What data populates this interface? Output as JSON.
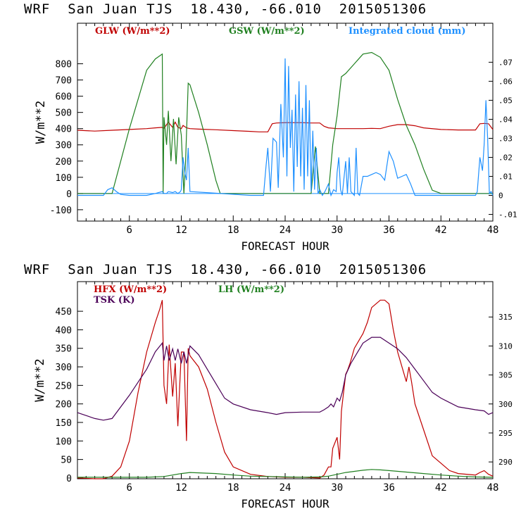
{
  "chart_data": [
    {
      "type": "line",
      "title": "WRF  San Juan TJS  18.430, -66.010  2015051306",
      "xlabel": "FORECAST HOUR",
      "ylabel": "W/m**2",
      "xlim": [
        0,
        48
      ],
      "ylim": [
        -170,
        1050
      ],
      "xticks": [
        6,
        12,
        18,
        24,
        30,
        36,
        42,
        48
      ],
      "yticks": [
        -100,
        0,
        100,
        200,
        300,
        400,
        500,
        600,
        700,
        800
      ],
      "y2lim": [
        -0.0135,
        0.0905
      ],
      "y2ticks": [
        -0.01,
        0,
        0.01,
        0.02,
        0.03,
        0.04,
        0.05,
        0.06,
        0.07
      ],
      "y2ticklabels": [
        "-.01",
        "0",
        ".01",
        ".02",
        ".03",
        ".04",
        ".05",
        ".06",
        ".07"
      ],
      "series": [
        {
          "name": "GLW (W/m**2)",
          "color": "#c00000",
          "axis": "left",
          "x": [
            0,
            2,
            4,
            6,
            8,
            9,
            9.8,
            10,
            10.5,
            11,
            11.3,
            11.6,
            12,
            12.2,
            12.6,
            13,
            14,
            16,
            18,
            20,
            21,
            22,
            22.5,
            23,
            24,
            25,
            26,
            27,
            28,
            28.5,
            29,
            30,
            31,
            32,
            33,
            34,
            35,
            36,
            37,
            38,
            39,
            40,
            42,
            44,
            46,
            46.5,
            47,
            47.5,
            48
          ],
          "y": [
            390,
            385,
            390,
            395,
            400,
            405,
            408,
            402,
            440,
            408,
            440,
            408,
            400,
            420,
            405,
            400,
            397,
            393,
            388,
            383,
            380,
            380,
            430,
            435,
            437,
            437,
            437,
            435,
            435,
            415,
            405,
            400,
            400,
            400,
            400,
            402,
            400,
            415,
            425,
            425,
            418,
            405,
            395,
            392,
            392,
            430,
            432,
            430,
            395
          ]
        },
        {
          "name": "GSW (W/m**2)",
          "color": "#208020",
          "axis": "left",
          "x": [
            0,
            2,
            4,
            6,
            8,
            9,
            9.8,
            9.9,
            10,
            10.3,
            10.5,
            10.8,
            11.1,
            11.4,
            11.7,
            12,
            12.3,
            12.5,
            12.8,
            13,
            14,
            15,
            16,
            16.5,
            17,
            20,
            26,
            27,
            27.5,
            28,
            29,
            29.5,
            30,
            30.5,
            31,
            32,
            33,
            34,
            35,
            36,
            37,
            38,
            39,
            40,
            41,
            42,
            48
          ],
          "y": [
            0,
            0,
            0,
            400,
            760,
            830,
            860,
            0,
            470,
            300,
            510,
            200,
            460,
            180,
            470,
            360,
            0,
            200,
            680,
            670,
            500,
            300,
            80,
            0,
            0,
            0,
            0,
            0,
            290,
            0,
            0,
            300,
            480,
            720,
            740,
            800,
            860,
            870,
            840,
            760,
            580,
            420,
            300,
            150,
            20,
            0,
            0
          ]
        },
        {
          "name": "Integrated cloud (mm)",
          "color": "#1e90ff",
          "axis": "right",
          "x": [
            0,
            3,
            3.5,
            4,
            4.5,
            5,
            6,
            8,
            9,
            9.8,
            10,
            10.3,
            10.5,
            11,
            11.3,
            11.6,
            11.9,
            12,
            12.2,
            12.4,
            12.6,
            12.8,
            13,
            20,
            21.5,
            21.8,
            22,
            22.3,
            22.6,
            23,
            23.2,
            23.5,
            23.8,
            24,
            24.2,
            24.4,
            24.6,
            24.8,
            25,
            25.2,
            25.4,
            25.6,
            25.8,
            26,
            26.2,
            26.4,
            26.6,
            26.8,
            27,
            27.2,
            27.4,
            27.6,
            27.8,
            28,
            28.3,
            28.6,
            29,
            29.3,
            29.6,
            29.9,
            30,
            30.2,
            30.4,
            30.6,
            31,
            31.2,
            31.4,
            31.6,
            32,
            32.2,
            32.4,
            32.6,
            33,
            33.5,
            34,
            34.5,
            35,
            35.5,
            36,
            36.5,
            37,
            37.5,
            38,
            38.5,
            39,
            46,
            46.2,
            46.5,
            46.8,
            47,
            47.2,
            47.4,
            47.6,
            47.8,
            48
          ],
          "y": [
            0,
            0,
            0.003,
            0.004,
            0.002,
            0.0005,
            0,
            0,
            0.001,
            0.002,
            0.001,
            0.001,
            0.002,
            0.0015,
            0.002,
            0.001,
            0.002,
            0.003,
            0.02,
            0.012,
            0.008,
            0.025,
            0.002,
            0,
            0,
            0.016,
            0.025,
            0.002,
            0.03,
            0.028,
            0.004,
            0.048,
            0.02,
            0.072,
            0.01,
            0.068,
            0.025,
            0.045,
            0.002,
            0.053,
            0.015,
            0.06,
            0.01,
            0.046,
            0.003,
            0.058,
            0.01,
            0.05,
            0.002,
            0.034,
            0.003,
            0.025,
            0.001,
            0.003,
            0.0,
            0.002,
            0.006,
            0.0,
            0.003,
            0.002,
            0.012,
            0.02,
            0.003,
            0.0,
            0.018,
            0.001,
            0.02,
            0.002,
            0,
            0.025,
            0.001,
            0.0,
            0.01,
            0.01,
            0.011,
            0.012,
            0.011,
            0.008,
            0.023,
            0.018,
            0.009,
            0.01,
            0.011,
            0.006,
            0.0,
            0,
            0.002,
            0.02,
            0.013,
            0.027,
            0.05,
            0.03,
            0.001,
            0.002,
            0.0
          ]
        }
      ]
    },
    {
      "type": "line",
      "title": "WRF  San Juan TJS  18.430, -66.010  2015051306",
      "xlabel": "FORECAST HOUR",
      "ylabel": "W/m**2",
      "xlim": [
        0,
        48
      ],
      "ylim": [
        -2,
        530
      ],
      "xticks": [
        6,
        12,
        18,
        24,
        30,
        36,
        42,
        48
      ],
      "yticks": [
        0,
        50,
        100,
        150,
        200,
        250,
        300,
        350,
        400,
        450
      ],
      "y2lim": [
        287.1,
        321.1
      ],
      "y2ticks": [
        290,
        295,
        300,
        305,
        310,
        315
      ],
      "y2ticklabels": [
        "290",
        "295",
        "300",
        "305",
        "310",
        "315"
      ],
      "series": [
        {
          "name": "HFX (W/m**2)",
          "color": "#c00000",
          "axis": "left",
          "x": [
            0,
            2,
            3,
            4,
            5,
            6,
            7,
            8,
            9,
            9.5,
            9.8,
            10,
            10.3,
            10.6,
            11,
            11.3,
            11.6,
            12,
            12.3,
            12.6,
            12.8,
            13,
            14,
            15,
            16,
            17,
            18,
            20,
            22,
            24,
            26,
            28,
            28.5,
            29,
            29.3,
            29.5,
            30,
            30.3,
            30.5,
            31,
            31.2,
            31.5,
            32,
            33,
            33.5,
            34,
            35,
            35.5,
            36,
            36.5,
            37,
            38,
            38.3,
            38.6,
            39,
            40,
            41,
            42,
            43,
            44,
            46,
            46.5,
            47,
            47.5,
            48
          ],
          "y": [
            0,
            -2,
            -2,
            5,
            30,
            100,
            230,
            340,
            420,
            455,
            480,
            250,
            200,
            360,
            220,
            310,
            140,
            340,
            340,
            100,
            350,
            330,
            300,
            240,
            150,
            70,
            30,
            10,
            4,
            2,
            2,
            0,
            8,
            30,
            30,
            80,
            110,
            50,
            180,
            280,
            290,
            310,
            350,
            390,
            420,
            460,
            480,
            480,
            470,
            400,
            340,
            260,
            300,
            260,
            200,
            130,
            60,
            40,
            20,
            12,
            8,
            15,
            20,
            10,
            5
          ]
        },
        {
          "name": "LH (W/m**2)",
          "color": "#208020",
          "axis": "left",
          "x": [
            0,
            4,
            6,
            8,
            10,
            12,
            13,
            14,
            16,
            18,
            20,
            22,
            24,
            26,
            28,
            29,
            30,
            31,
            32,
            33,
            34,
            35,
            36,
            38,
            40,
            42,
            44,
            46,
            48
          ],
          "y": [
            2,
            2,
            2,
            2,
            4,
            12,
            15,
            14,
            12,
            8,
            5,
            4,
            3,
            2,
            3,
            5,
            10,
            15,
            18,
            21,
            23,
            22,
            20,
            16,
            12,
            8,
            5,
            3,
            2
          ]
        },
        {
          "name": "TSK (K)",
          "color": "#4b0058",
          "axis": "right",
          "x": [
            0,
            2,
            3,
            4,
            6,
            8,
            9,
            9.8,
            10,
            10.3,
            10.6,
            11,
            11.3,
            11.6,
            12,
            12.3,
            12.6,
            13,
            14,
            15,
            16,
            17,
            18,
            20,
            22,
            23,
            24,
            26,
            28,
            28.5,
            29,
            29.3,
            29.6,
            30,
            30.3,
            30.6,
            31,
            31.3,
            31.6,
            32,
            33,
            34,
            35,
            36,
            37,
            38,
            39,
            40,
            41,
            42,
            44,
            46,
            47,
            47.5,
            48
          ],
          "y": [
            298.5,
            297.5,
            297.2,
            297.5,
            301.5,
            306,
            309,
            310.5,
            307.5,
            310,
            307.5,
            309.5,
            307.5,
            309.5,
            307,
            309,
            307,
            310,
            308.5,
            306,
            303.5,
            301,
            300,
            299,
            298.5,
            298.2,
            298.5,
            298.6,
            298.6,
            299,
            299.5,
            300,
            299.5,
            301,
            300.5,
            302,
            305,
            306,
            307,
            308,
            310.5,
            311.5,
            311.5,
            310.5,
            309.5,
            308,
            306,
            304,
            302,
            301,
            299.5,
            299,
            298.8,
            298.2,
            298.5
          ]
        }
      ]
    }
  ]
}
